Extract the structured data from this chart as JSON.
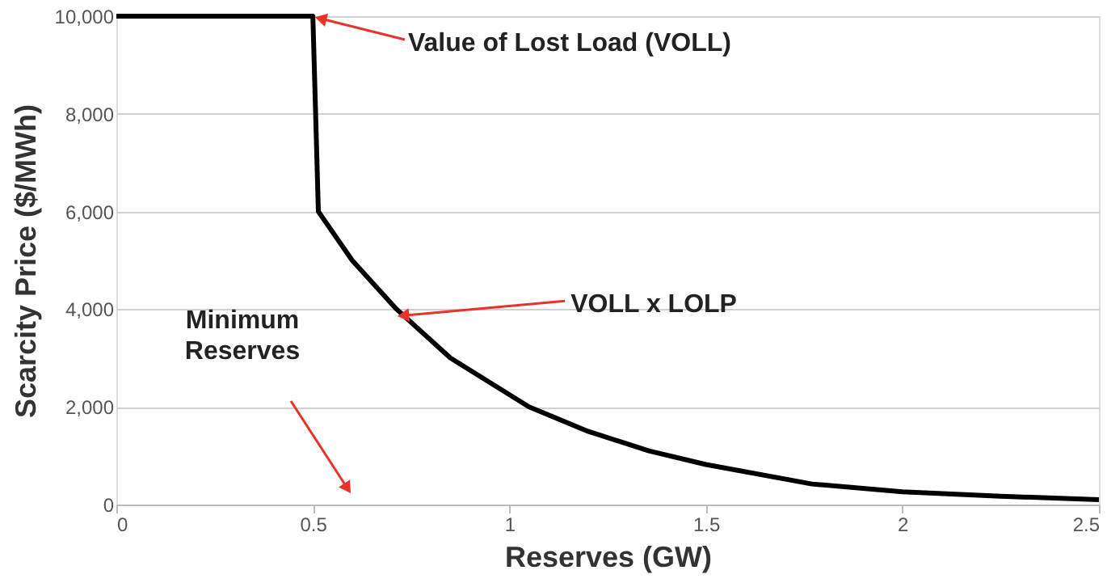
{
  "chart_data": {
    "type": "line",
    "xlabel": "Reserves (GW)",
    "ylabel": "Scarcity Price ($/MWh)",
    "x": [
      0,
      0.5,
      0.514,
      0.6,
      0.713,
      0.85,
      1.05,
      1.2,
      1.355,
      1.5,
      1.77,
      2.0,
      2.25,
      2.5
    ],
    "series": [
      {
        "color": "#000000",
        "values": [
          10000,
          10000,
          6000,
          5000,
          4000,
          3000,
          2000,
          1500,
          1100,
          820,
          420,
          260,
          170,
          100
        ]
      }
    ],
    "xlim": [
      0,
      2.5
    ],
    "xticks": [
      0,
      0.5,
      1,
      1.5,
      2,
      2.5
    ],
    "ylim": [
      0,
      10000
    ],
    "yticks": [
      0,
      {
        "value": 2000,
        "label": "2,000"
      },
      {
        "value": 4000,
        "label": "4,000"
      },
      {
        "value": 6000,
        "label": "6,000"
      },
      {
        "value": 8000,
        "label": "8,000"
      },
      {
        "value": 10000,
        "label": "10,000"
      }
    ],
    "grid": "y",
    "marker": "none",
    "line_style": "solid",
    "annotations": [
      {
        "text": "Value of Lost Load (VOLL)",
        "x": 0.52,
        "y": 9950
      },
      {
        "text": "VOLL x  LOLP",
        "x": 0.73,
        "y": 3870
      },
      "Minimum Reserves"
    ]
  }
}
